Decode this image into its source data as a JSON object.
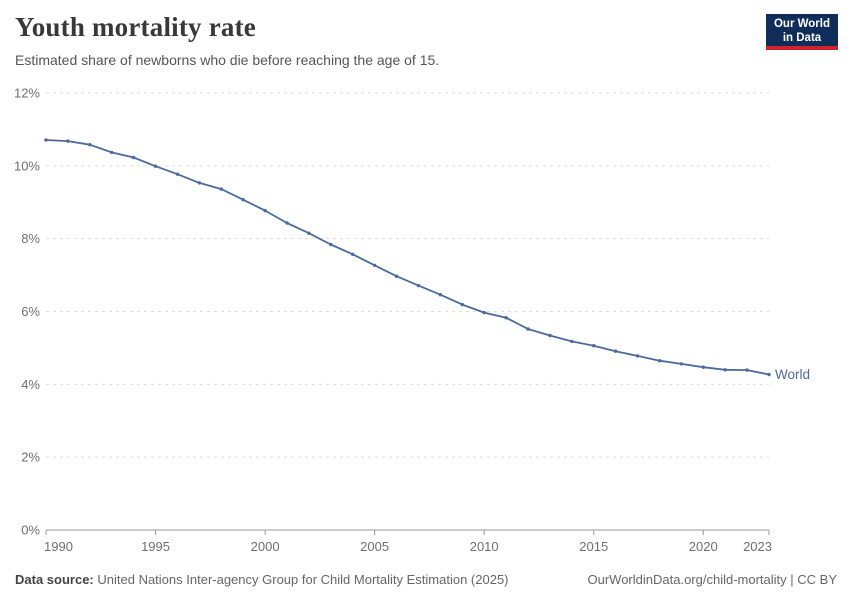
{
  "header": {
    "title": "Youth mortality rate",
    "subtitle": "Estimated share of newborns who die before reaching the age of 15.",
    "logo": {
      "line1": "Our World",
      "line2": "in Data",
      "bg_color": "#102D5A",
      "accent_color": "#D0242C"
    }
  },
  "chart_data": {
    "type": "line",
    "title": "Youth mortality rate",
    "xlabel": "",
    "ylabel": "",
    "unit": "%",
    "grid": "horizontal-dashed",
    "legend_position": "end-of-line",
    "xlim": [
      1990,
      2023
    ],
    "ylim": [
      0,
      12
    ],
    "xticks": [
      1990,
      1995,
      2000,
      2005,
      2010,
      2015,
      2020,
      2023
    ],
    "yticks": [
      0,
      2,
      4,
      6,
      8,
      10,
      12
    ],
    "ytick_suffix": "%",
    "x": [
      1990,
      1991,
      1992,
      1993,
      1994,
      1995,
      1996,
      1997,
      1998,
      1999,
      2000,
      2001,
      2002,
      2003,
      2004,
      2005,
      2006,
      2007,
      2008,
      2009,
      2010,
      2011,
      2012,
      2013,
      2014,
      2015,
      2016,
      2017,
      2018,
      2019,
      2020,
      2021,
      2022,
      2023
    ],
    "series": [
      {
        "name": "World",
        "color": "#4C6A9C",
        "values": [
          10.71,
          10.68,
          10.58,
          10.37,
          10.23,
          9.99,
          9.77,
          9.53,
          9.36,
          9.07,
          8.77,
          8.43,
          8.15,
          7.84,
          7.57,
          7.27,
          6.97,
          6.71,
          6.46,
          6.19,
          5.97,
          5.83,
          5.52,
          5.34,
          5.18,
          5.06,
          4.91,
          4.78,
          4.65,
          4.56,
          4.47,
          4.4,
          4.39,
          4.27
        ]
      }
    ],
    "colors": {
      "gridline": "#dddddd",
      "axis": "#999999",
      "tick_label": "#6e6e6e"
    }
  },
  "footer": {
    "source_label": "Data source:",
    "source_text": "United Nations Inter-agency Group for Child Mortality Estimation (2025)",
    "link": "OurWorldinData.org/child-mortality | CC BY"
  }
}
